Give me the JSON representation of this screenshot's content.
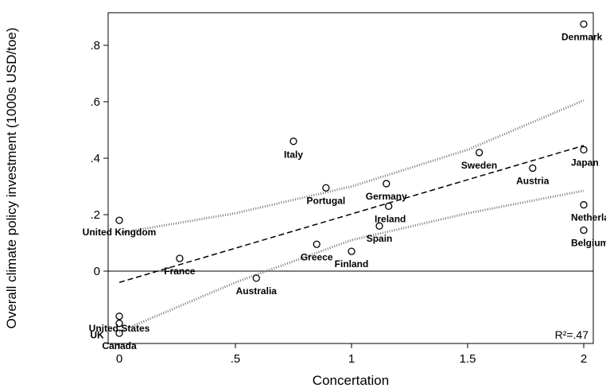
{
  "chart_data": {
    "type": "scatter",
    "xlabel": "Concertation",
    "ylabel": "Overall climate policy investment (1000s USD/toe)",
    "xlim": [
      0,
      2.04
    ],
    "ylim": [
      -0.25,
      0.91
    ],
    "xticks": [
      {
        "value": 0,
        "label": "0"
      },
      {
        "value": 0.5,
        "label": ".5"
      },
      {
        "value": 1,
        "label": "1"
      },
      {
        "value": 1.5,
        "label": "1.5"
      },
      {
        "value": 2,
        "label": "2"
      }
    ],
    "yticks": [
      {
        "value": 0,
        "label": "0"
      },
      {
        "value": 0.2,
        "label": ".2"
      },
      {
        "value": 0.4,
        "label": ".4"
      },
      {
        "value": 0.6,
        "label": ".6"
      },
      {
        "value": 0.8,
        "label": ".8"
      }
    ],
    "points": [
      {
        "label": "Denmark",
        "x": 2.0,
        "y": 0.875
      },
      {
        "label": "Japan",
        "x": 2.0,
        "y": 0.43
      },
      {
        "label": "Netherlands",
        "x": 2.0,
        "y": 0.235
      },
      {
        "label": "Belgium",
        "x": 2.0,
        "y": 0.145
      },
      {
        "label": "Sweden",
        "x": 1.55,
        "y": 0.42
      },
      {
        "label": "Austria",
        "x": 1.78,
        "y": 0.365
      },
      {
        "label": "Italy",
        "x": 0.75,
        "y": 0.46
      },
      {
        "label": "Germany",
        "x": 1.15,
        "y": 0.31
      },
      {
        "label": "Portugal",
        "x": 0.89,
        "y": 0.295
      },
      {
        "label": "Ireland",
        "x": 1.16,
        "y": 0.23
      },
      {
        "label": "Spain",
        "x": 1.12,
        "y": 0.16
      },
      {
        "label": "Greece",
        "x": 0.85,
        "y": 0.095
      },
      {
        "label": "Finland",
        "x": 1.0,
        "y": 0.07
      },
      {
        "label": "France",
        "x": 0.26,
        "y": 0.045
      },
      {
        "label": "Australia",
        "x": 0.59,
        "y": -0.025
      },
      {
        "label": "United Kingdom",
        "x": 0.0,
        "y": 0.18
      },
      {
        "label": "United States",
        "x": 0.0,
        "y": -0.16
      },
      {
        "label": "Canada",
        "x": 0.0,
        "y": -0.22
      },
      {
        "label": "UK",
        "x": 0.0,
        "y": -0.185
      }
    ],
    "fit_line": {
      "x": [
        0,
        2
      ],
      "y": [
        -0.04,
        0.445
      ]
    },
    "ci_upper": {
      "x": [
        0,
        0.5,
        1,
        1.5,
        2
      ],
      "y": [
        0.135,
        0.205,
        0.3,
        0.43,
        0.605
      ]
    },
    "ci_lower": {
      "x": [
        0,
        0.5,
        1,
        1.5,
        2
      ],
      "y": [
        -0.215,
        -0.04,
        0.11,
        0.205,
        0.285
      ]
    },
    "annotation": "R²=.47",
    "grid": false,
    "reference_line_y": 0
  }
}
